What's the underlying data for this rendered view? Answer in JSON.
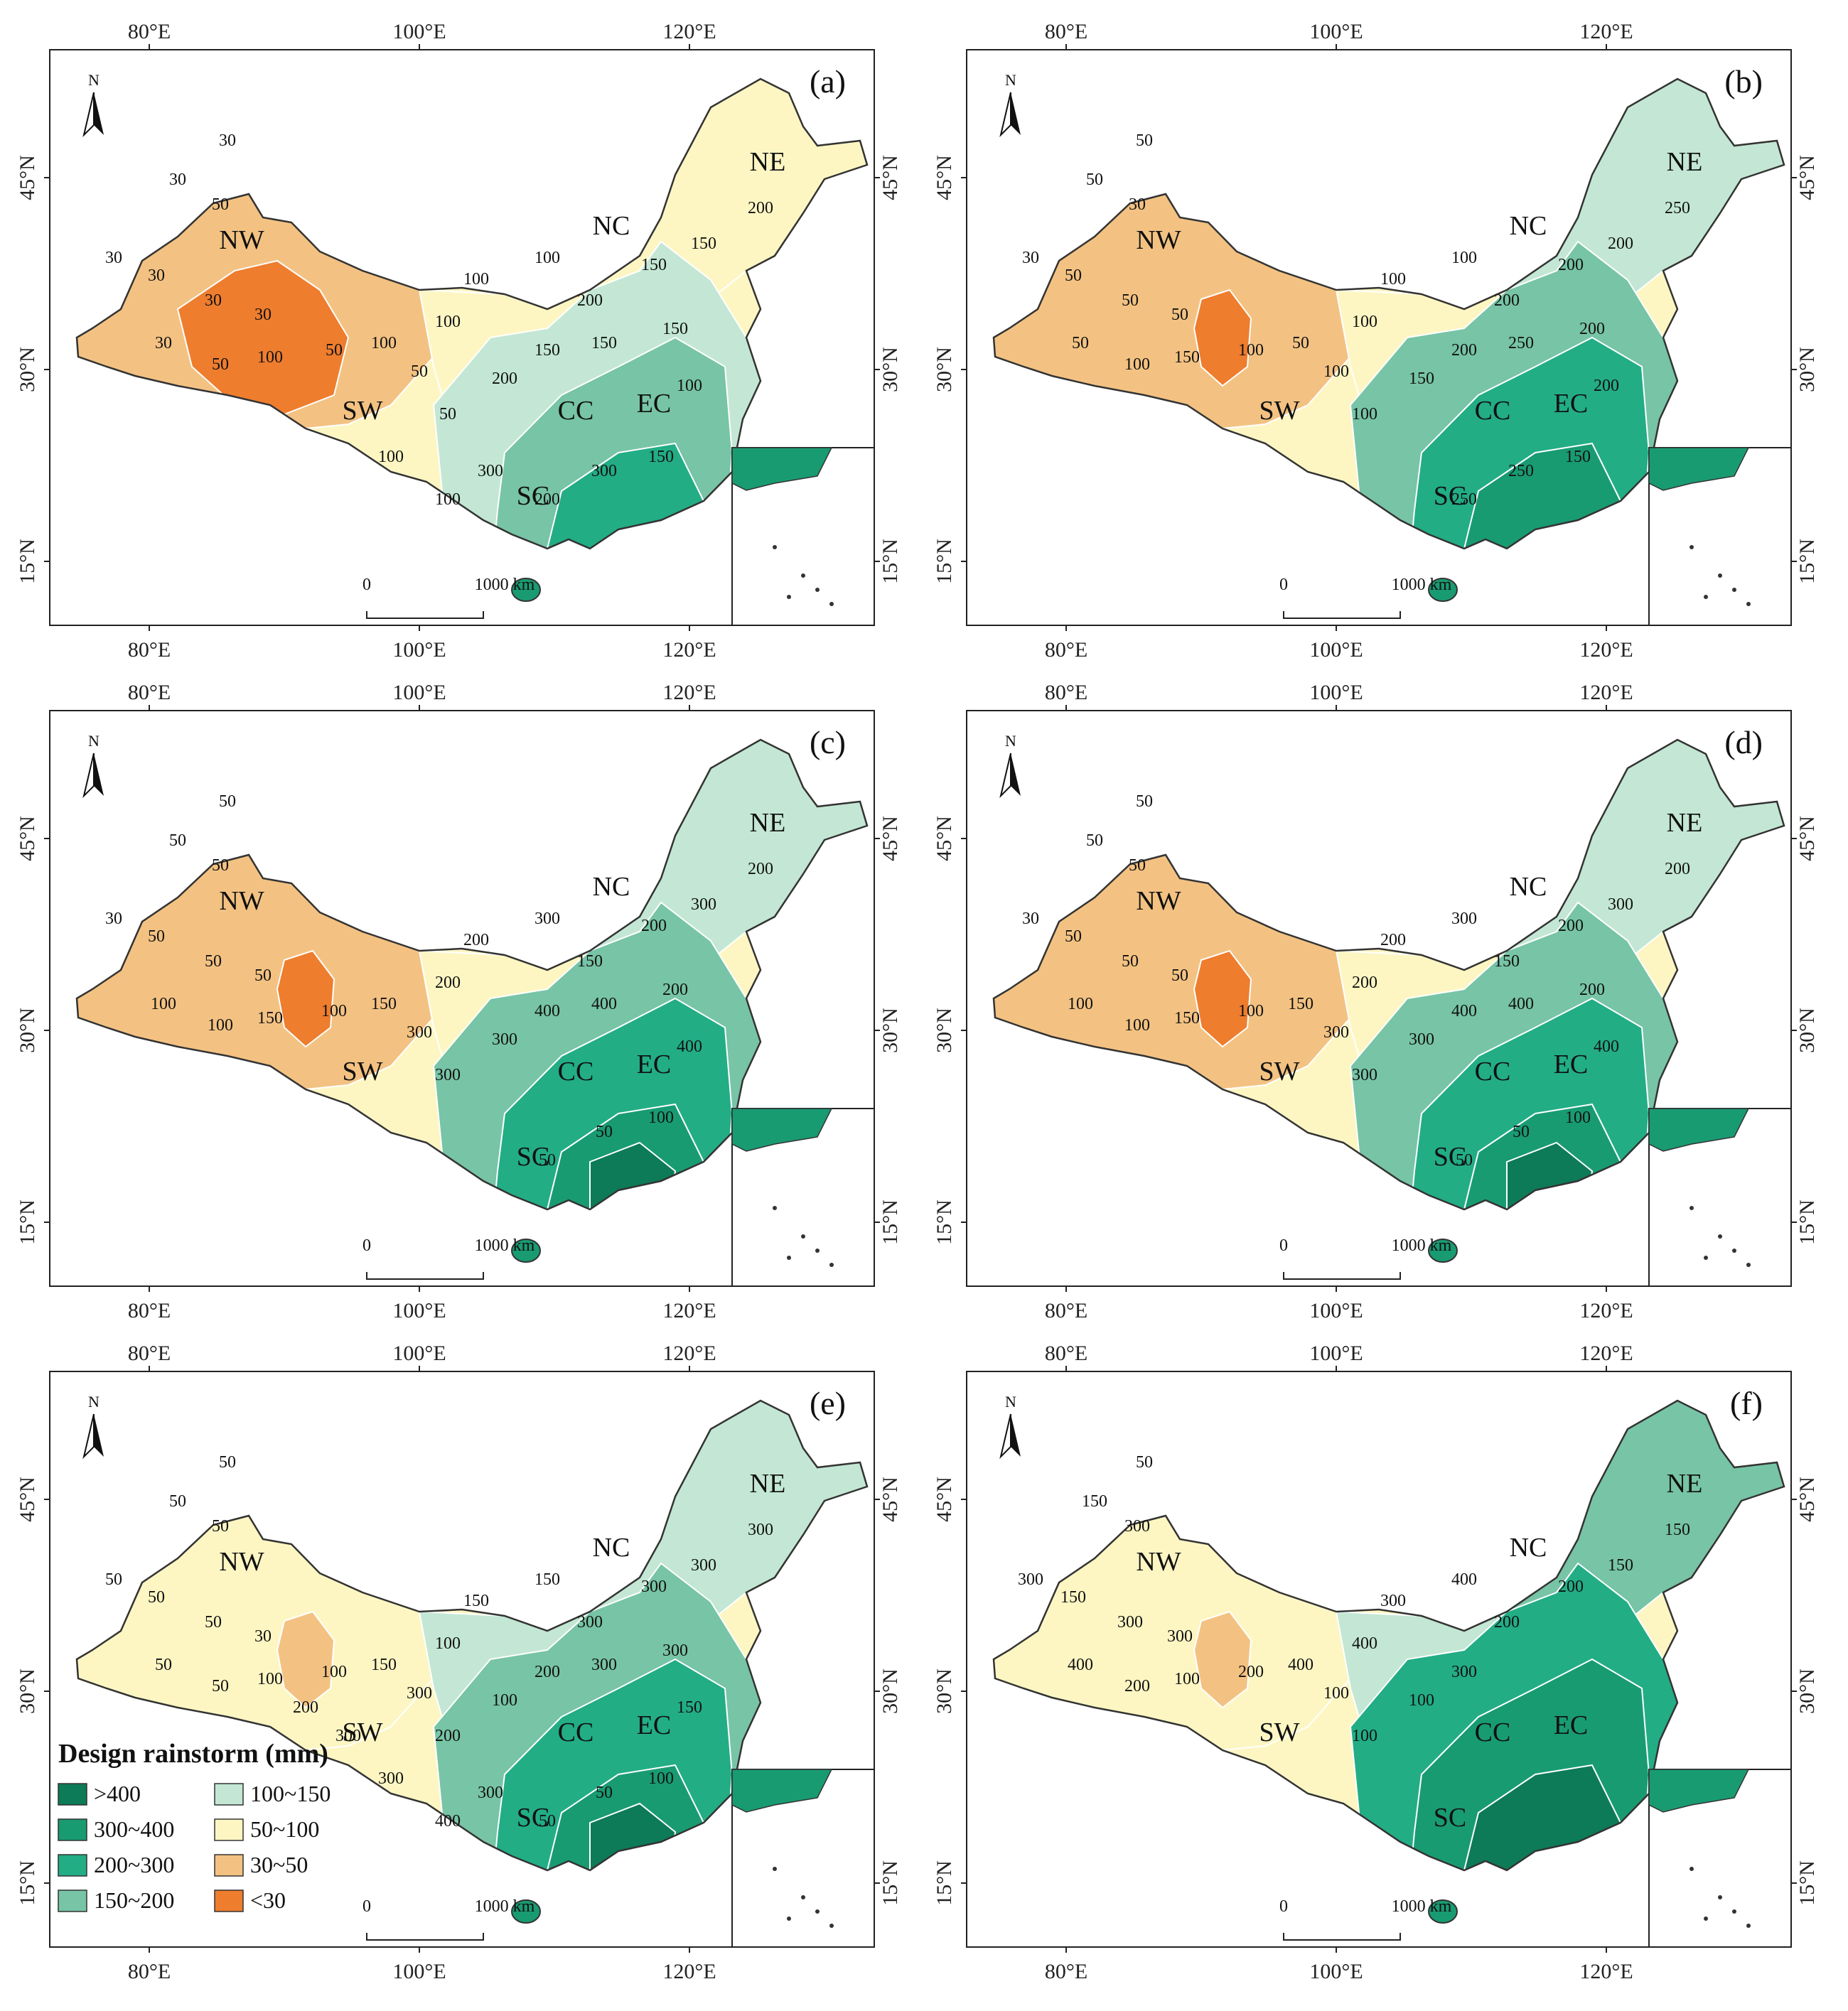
{
  "figure": {
    "lon_ticks": [
      "80°E",
      "100°E",
      "120°E"
    ],
    "lat_ticks": [
      "45°N",
      "30°N",
      "15°N"
    ],
    "north_label": "N",
    "scale_bar": {
      "start": "0",
      "end": "1000 km"
    },
    "region_labels": [
      "NW",
      "NC",
      "NE",
      "SW",
      "CC",
      "EC",
      "SC"
    ],
    "panels": [
      {
        "tag": "(a)",
        "contour_labels": [
          "30",
          "30",
          "50",
          "30",
          "30",
          "30",
          "30",
          "30",
          "50",
          "100",
          "50",
          "100",
          "100",
          "100",
          "100",
          "200",
          "150",
          "150",
          "200",
          "50",
          "50",
          "200",
          "150",
          "150",
          "150",
          "100",
          "150",
          "300",
          "200",
          "300",
          "100",
          "100"
        ]
      },
      {
        "tag": "(b)",
        "contour_labels": [
          "50",
          "50",
          "30",
          "30",
          "50",
          "50",
          "50",
          "50",
          "100",
          "150",
          "100",
          "50",
          "100",
          "100",
          "100",
          "200",
          "200",
          "200",
          "250",
          "100",
          "100",
          "150",
          "200",
          "250",
          "200",
          "200",
          "150",
          "250",
          "250"
        ]
      },
      {
        "tag": "(c)",
        "contour_labels": [
          "50",
          "50",
          "50",
          "30",
          "50",
          "50",
          "50",
          "100",
          "100",
          "150",
          "100",
          "150",
          "200",
          "200",
          "300",
          "150",
          "200",
          "300",
          "200",
          "300",
          "300",
          "300",
          "400",
          "400",
          "200",
          "400",
          "100",
          "50",
          "50"
        ]
      },
      {
        "tag": "(d)",
        "contour_labels": [
          "50",
          "50",
          "50",
          "30",
          "50",
          "50",
          "50",
          "100",
          "100",
          "150",
          "100",
          "150",
          "200",
          "200",
          "300",
          "150",
          "200",
          "300",
          "200",
          "300",
          "300",
          "300",
          "400",
          "400",
          "200",
          "400",
          "100",
          "50",
          "50"
        ]
      },
      {
        "tag": "(e)",
        "contour_labels": [
          "50",
          "50",
          "50",
          "50",
          "50",
          "50",
          "30",
          "50",
          "50",
          "100",
          "100",
          "150",
          "100",
          "150",
          "150",
          "300",
          "300",
          "300",
          "300",
          "300",
          "200",
          "100",
          "200",
          "300",
          "300",
          "150",
          "100",
          "50",
          "50",
          "300",
          "400",
          "300",
          "300",
          "200"
        ]
      },
      {
        "tag": "(f)",
        "contour_labels": [
          "50",
          "150",
          "300",
          "300",
          "150",
          "300",
          "300",
          "400",
          "200",
          "100",
          "200",
          "400",
          "400",
          "300",
          "400",
          "200",
          "200",
          "150",
          "150",
          "100",
          "100",
          "100",
          "300"
        ]
      }
    ],
    "legend": {
      "title": "Design rainstorm (mm)",
      "items": [
        {
          "label": ">400",
          "color": "#0d7a58"
        },
        {
          "label": "300~400",
          "color": "#199b72"
        },
        {
          "label": "200~300",
          "color": "#22ad85"
        },
        {
          "label": "150~200",
          "color": "#77c4a6"
        },
        {
          "label": "100~150",
          "color": "#c3e7d4"
        },
        {
          "label": "50~100",
          "color": "#fdf6c3"
        },
        {
          "label": "30~50",
          "color": "#f3c282"
        },
        {
          "label": "<30",
          "color": "#ee7d2e"
        }
      ]
    }
  }
}
